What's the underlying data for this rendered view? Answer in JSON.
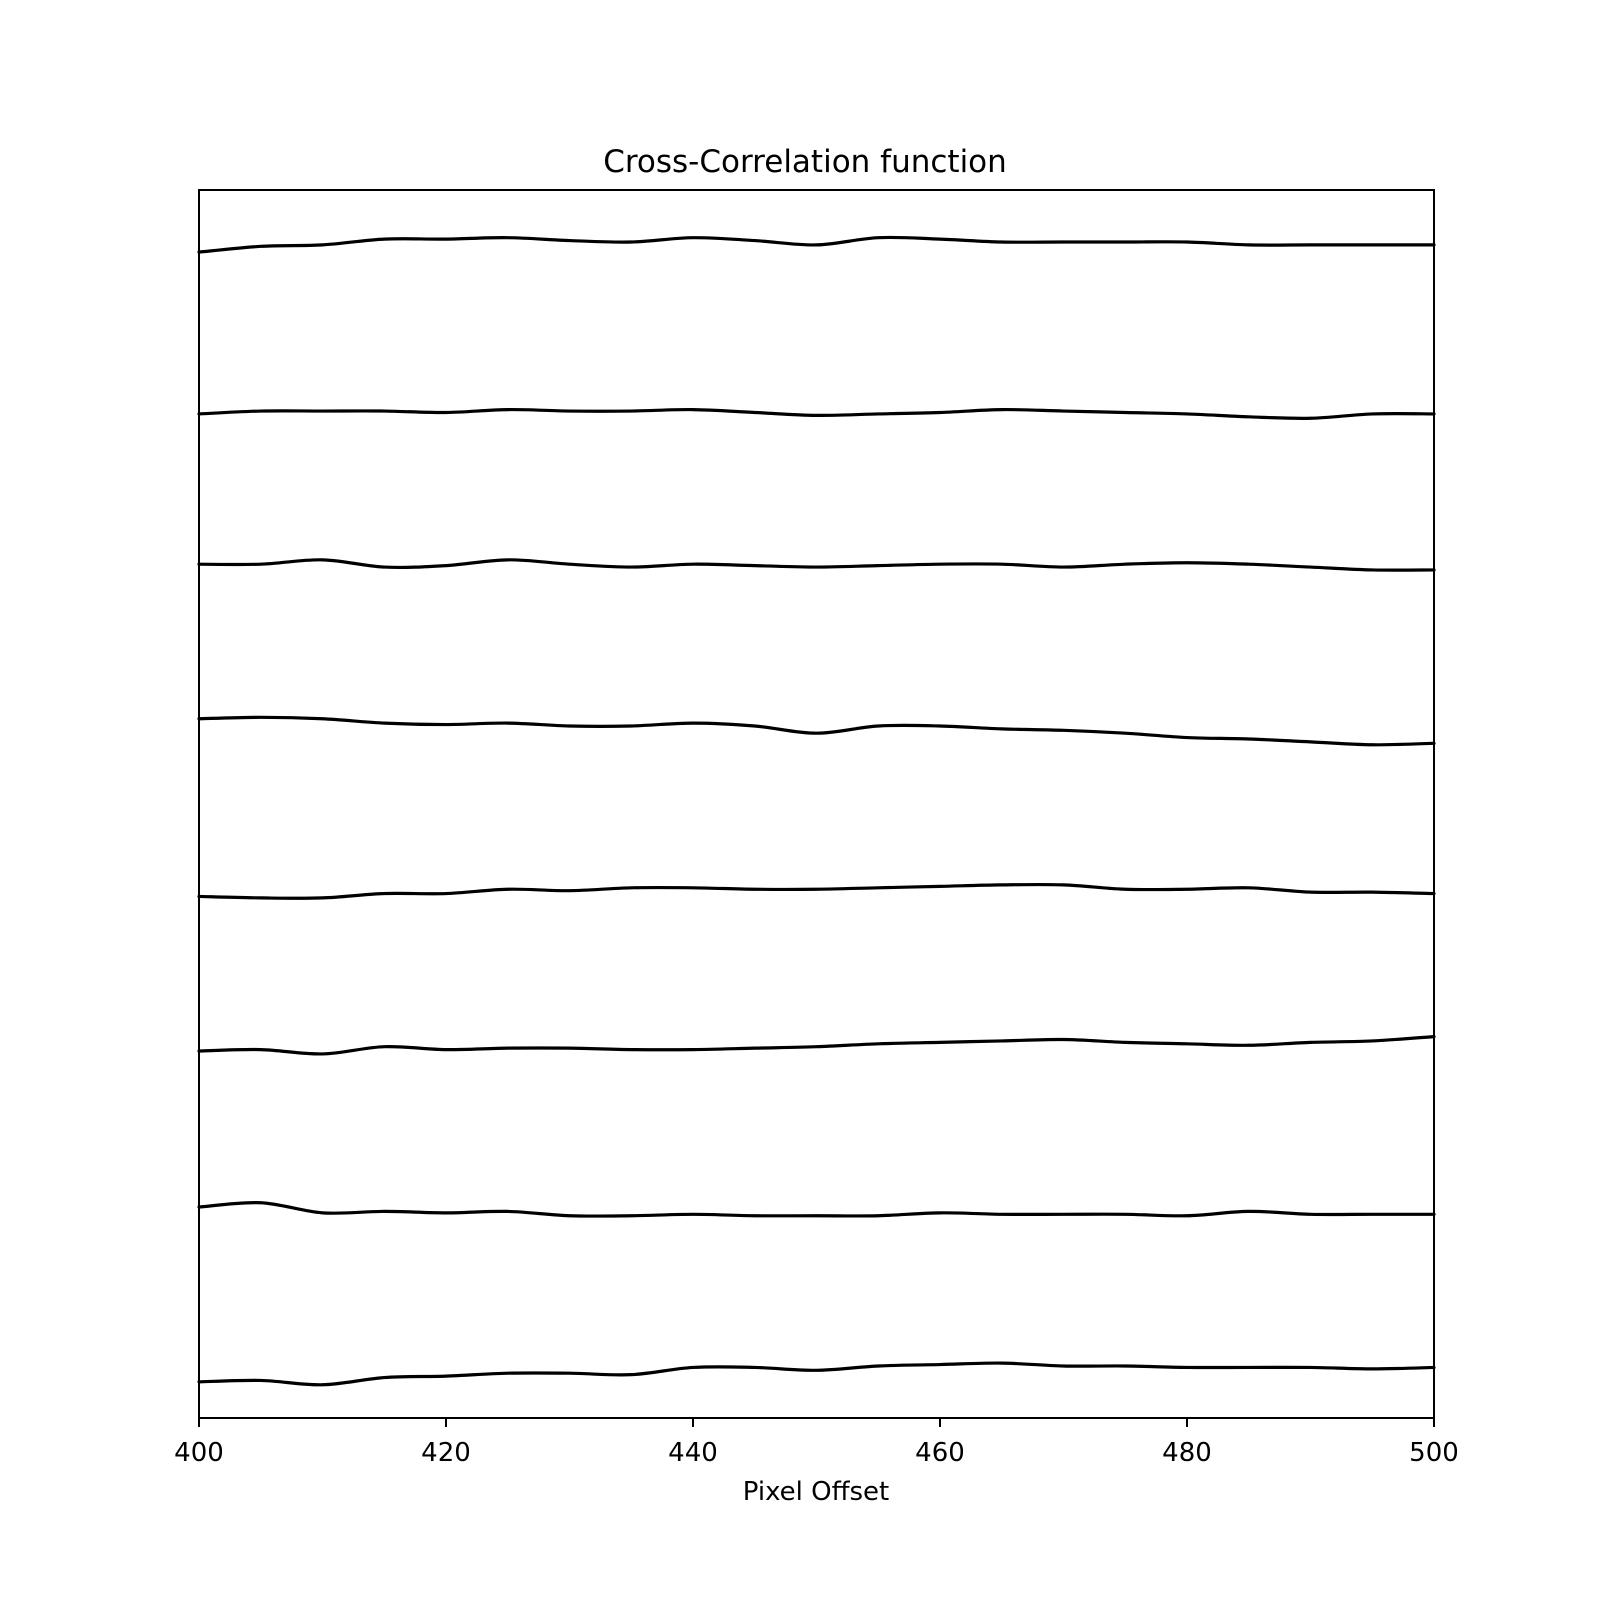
{
  "chart_data": {
    "type": "line",
    "title": "Cross-Correlation function",
    "xlabel": "Pixel Offset",
    "ylabel": "",
    "xlim": [
      400,
      500
    ],
    "ylim": [
      0,
      8.5
    ],
    "x_ticks": [
      "400",
      "420",
      "440",
      "460",
      "480",
      "500"
    ],
    "y_ticks_visible": false,
    "grid": false,
    "legend": "none",
    "line_color": "#000000",
    "x": [
      400,
      405,
      410,
      415,
      420,
      425,
      430,
      435,
      440,
      445,
      450,
      455,
      460,
      465,
      470,
      475,
      480,
      485,
      490,
      495,
      500
    ],
    "series": [
      {
        "values": [
          8.07,
          8.11,
          8.12,
          8.16,
          8.16,
          8.17,
          8.15,
          8.14,
          8.17,
          8.15,
          8.12,
          8.17,
          8.16,
          8.14,
          8.14,
          8.14,
          8.14,
          8.12,
          8.12,
          8.12,
          8.12
        ]
      },
      {
        "values": [
          6.95,
          6.97,
          6.97,
          6.97,
          6.96,
          6.98,
          6.97,
          6.97,
          6.98,
          6.96,
          6.94,
          6.95,
          6.96,
          6.98,
          6.97,
          6.96,
          6.95,
          6.93,
          6.92,
          6.95,
          6.95
        ]
      },
      {
        "values": [
          5.91,
          5.91,
          5.94,
          5.89,
          5.9,
          5.94,
          5.91,
          5.89,
          5.91,
          5.9,
          5.89,
          5.9,
          5.91,
          5.91,
          5.89,
          5.91,
          5.92,
          5.91,
          5.89,
          5.87,
          5.87
        ]
      },
      {
        "values": [
          4.84,
          4.85,
          4.84,
          4.81,
          4.8,
          4.81,
          4.79,
          4.79,
          4.81,
          4.79,
          4.74,
          4.79,
          4.79,
          4.77,
          4.76,
          4.74,
          4.71,
          4.7,
          4.68,
          4.66,
          4.67
        ]
      },
      {
        "values": [
          3.61,
          3.6,
          3.6,
          3.63,
          3.63,
          3.66,
          3.65,
          3.67,
          3.67,
          3.66,
          3.66,
          3.67,
          3.68,
          3.69,
          3.69,
          3.66,
          3.66,
          3.67,
          3.64,
          3.64,
          3.63
        ]
      },
      {
        "values": [
          2.54,
          2.55,
          2.52,
          2.57,
          2.55,
          2.56,
          2.56,
          2.55,
          2.55,
          2.56,
          2.57,
          2.59,
          2.6,
          2.61,
          2.62,
          2.6,
          2.59,
          2.58,
          2.6,
          2.61,
          2.64
        ]
      },
      {
        "values": [
          1.46,
          1.49,
          1.42,
          1.43,
          1.42,
          1.43,
          1.4,
          1.4,
          1.41,
          1.4,
          1.4,
          1.4,
          1.42,
          1.41,
          1.41,
          1.41,
          1.4,
          1.43,
          1.41,
          1.41,
          1.41
        ]
      },
      {
        "values": [
          0.25,
          0.26,
          0.23,
          0.28,
          0.29,
          0.31,
          0.31,
          0.3,
          0.35,
          0.35,
          0.33,
          0.36,
          0.37,
          0.38,
          0.36,
          0.36,
          0.35,
          0.35,
          0.35,
          0.34,
          0.35
        ]
      }
    ]
  }
}
